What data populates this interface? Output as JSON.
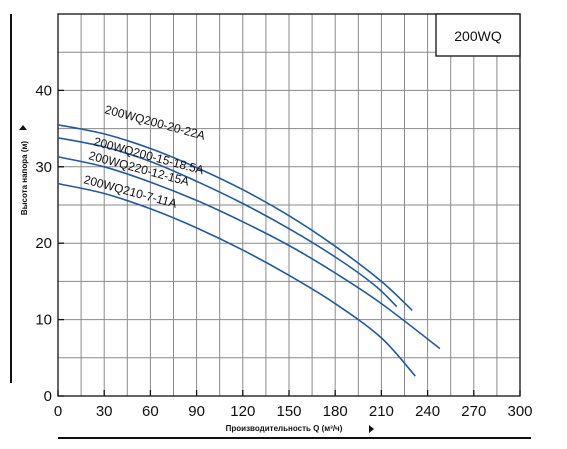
{
  "chart_data": {
    "type": "line",
    "title": "",
    "model": "200WQ",
    "xlabel": "Производительность Q (м³/ч)",
    "ylabel": "Высота напора (м)",
    "xlim": [
      0,
      300
    ],
    "ylim": [
      0,
      50
    ],
    "xticks": [
      0,
      30,
      60,
      90,
      120,
      150,
      180,
      210,
      240,
      270,
      300
    ],
    "yticks": [
      0,
      10,
      20,
      30,
      40
    ],
    "grid": true,
    "color": "#1f5aa6",
    "series": [
      {
        "name": "200WQ200-20-22A",
        "x": [
          0,
          30,
          60,
          90,
          120,
          150,
          180,
          210,
          230
        ],
        "y": [
          35.5,
          34.3,
          32.4,
          29.9,
          27.0,
          23.6,
          19.6,
          15.0,
          11.2
        ]
      },
      {
        "name": "200WQ200-15-18.5A",
        "x": [
          0,
          30,
          60,
          90,
          120,
          150,
          180,
          205,
          220
        ],
        "y": [
          33.8,
          32.6,
          30.7,
          28.1,
          25.2,
          21.9,
          18.2,
          14.6,
          11.7
        ]
      },
      {
        "name": "200WQ220-12-15A",
        "x": [
          0,
          30,
          60,
          90,
          120,
          150,
          180,
          210,
          248
        ],
        "y": [
          31.3,
          30.0,
          28.0,
          25.6,
          22.8,
          19.7,
          16.1,
          12.1,
          6.2
        ]
      },
      {
        "name": "200WQ210-7-11A",
        "x": [
          0,
          30,
          60,
          90,
          120,
          150,
          180,
          210,
          232
        ],
        "y": [
          27.8,
          26.5,
          24.5,
          22.0,
          19.1,
          15.8,
          12.1,
          7.6,
          2.6
        ]
      }
    ]
  }
}
